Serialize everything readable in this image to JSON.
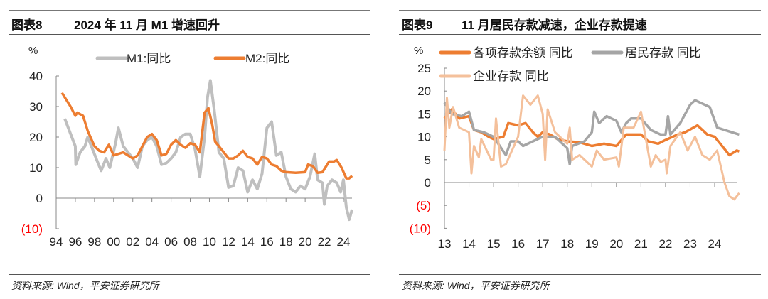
{
  "figures": [
    {
      "number": "图表8",
      "title": "2024 年 11 月 M1 增速回升",
      "source": "资料来源: Wind，平安证券研究所"
    },
    {
      "number": "图表9",
      "title": "11 月居民存款减速，企业存款提速",
      "source": "资料来源: Wind，平安证券研究所"
    }
  ],
  "chart_data": [
    {
      "type": "line",
      "unit_label": "%",
      "xlim": [
        1994,
        2025
      ],
      "ylim": [
        -10,
        40
      ],
      "x_ticks": [
        1994,
        1996,
        1998,
        2000,
        2002,
        2004,
        2006,
        2008,
        2010,
        2012,
        2014,
        2016,
        2018,
        2020,
        2022,
        2024
      ],
      "x_tick_labels": [
        "94",
        "96",
        "98",
        "00",
        "02",
        "04",
        "06",
        "08",
        "10",
        "12",
        "14",
        "16",
        "18",
        "20",
        "22",
        "24"
      ],
      "y_ticks": [
        40,
        30,
        20,
        10,
        0,
        -10
      ],
      "y_tick_labels": [
        "40",
        "30",
        "20",
        "10",
        "0",
        "(10)"
      ],
      "negative_label_color": "#ff0000",
      "grid": false,
      "legend_position": "top",
      "series": [
        {
          "name": "M1:同比",
          "color": "#bfbfbf",
          "x": [
            1994.9,
            1996,
            1996.05,
            1996.5,
            1997,
            1997.3,
            1997.8,
            1998.3,
            1998.7,
            1999.2,
            1999.6,
            2000.2,
            2000.5,
            2001,
            2001.5,
            2002,
            2002.5,
            2003,
            2003.5,
            2004,
            2004.5,
            2005,
            2005.5,
            2006,
            2006.5,
            2007,
            2007.5,
            2008,
            2008.5,
            2009,
            2009.5,
            2009.8,
            2010.1,
            2010.5,
            2011,
            2011.5,
            2012,
            2012.5,
            2013,
            2013.5,
            2014,
            2014.5,
            2015,
            2015.5,
            2016,
            2016.5,
            2017,
            2017.5,
            2018,
            2018.5,
            2019,
            2019.5,
            2020,
            2020.5,
            2021,
            2021.3,
            2021.8,
            2022,
            2022.3,
            2022.8,
            2023.3,
            2023.7,
            2024,
            2024.3,
            2024.6,
            2024.9
          ],
          "y": [
            26,
            17,
            11,
            15,
            17,
            20,
            16,
            12,
            9,
            13,
            10,
            18,
            23,
            17,
            15,
            13,
            10,
            17,
            19,
            20,
            17,
            11,
            11.5,
            13,
            15,
            20,
            21,
            21,
            16,
            7,
            20,
            33,
            38.5,
            29,
            15,
            13,
            3.5,
            4,
            10,
            9,
            2,
            6,
            3,
            8,
            23,
            25,
            14,
            15,
            7,
            3,
            2,
            4,
            3,
            7,
            14.5,
            6,
            5,
            -2,
            4,
            6,
            5,
            2,
            6,
            -3,
            -7,
            -3.7
          ]
        },
        {
          "name": "M2:同比",
          "color": "#ed7d31",
          "x": [
            1994.6,
            1995.5,
            1996,
            1996.2,
            1996.8,
            1997.3,
            1998,
            1998.5,
            1999,
            1999.5,
            2000,
            2001,
            2002,
            2002.5,
            2003.5,
            2004,
            2004.5,
            2005,
            2005.5,
            2006,
            2006.5,
            2007,
            2007.5,
            2008,
            2008.5,
            2009,
            2009.5,
            2009.9,
            2010.3,
            2010.6,
            2011,
            2011.5,
            2012,
            2012.5,
            2013,
            2013.5,
            2014,
            2014.5,
            2015,
            2015.5,
            2016,
            2016.5,
            2017,
            2017.5,
            2018,
            2019,
            2020,
            2020.3,
            2020.8,
            2021.3,
            2021.8,
            2022.5,
            2023,
            2023.3,
            2023.8,
            2024.3,
            2024.6,
            2024.9
          ],
          "y": [
            34.5,
            30,
            27,
            28,
            27,
            22,
            17,
            15.5,
            15,
            17.5,
            14,
            15,
            13,
            14,
            20,
            21,
            19,
            14,
            14.5,
            17.5,
            19,
            17.5,
            16.5,
            18,
            17.5,
            15,
            28,
            29.5,
            24,
            18.5,
            17,
            15,
            13,
            13,
            14,
            15.5,
            13.5,
            13,
            11,
            13.5,
            13,
            11,
            10.5,
            9,
            8.5,
            8.3,
            8.5,
            11,
            10.5,
            8.3,
            8.5,
            12,
            12,
            12.5,
            10,
            6.5,
            6.5,
            7.3
          ]
        }
      ]
    },
    {
      "type": "line",
      "unit_label": "%",
      "xlim": [
        2013,
        2025
      ],
      "ylim": [
        -10,
        25
      ],
      "x_ticks": [
        2013,
        2014,
        2015,
        2016,
        2017,
        2018,
        2019,
        2020,
        2021,
        2022,
        2023,
        2024
      ],
      "x_tick_labels": [
        "13",
        "14",
        "15",
        "16",
        "17",
        "18",
        "19",
        "20",
        "21",
        "22",
        "23",
        "24"
      ],
      "y_ticks": [
        25,
        20,
        15,
        10,
        5,
        0,
        -5,
        -10
      ],
      "y_tick_labels": [
        "25",
        "20",
        "15",
        "10",
        "5",
        "0",
        "(5)",
        "(10)"
      ],
      "negative_label_color": "#ff0000",
      "grid": false,
      "legend_position": "top",
      "series": [
        {
          "name": "各项存款余额 同比",
          "color": "#ed7d31",
          "x": [
            2013,
            2013.3,
            2013.6,
            2014,
            2014.2,
            2014.5,
            2014.8,
            2015,
            2015.4,
            2015.6,
            2016,
            2016.3,
            2016.6,
            2016.8,
            2017,
            2017.3,
            2017.6,
            2018,
            2018.5,
            2019,
            2019.5,
            2020,
            2020.4,
            2021,
            2021.3,
            2021.7,
            2022,
            2022.5,
            2022.8,
            2023.3,
            2023.7,
            2024,
            2024.3,
            2024.6,
            2024.9,
            2025
          ],
          "y": [
            14,
            16,
            14,
            14.5,
            11.5,
            11,
            10,
            9.5,
            10,
            13,
            12.5,
            13,
            11,
            10,
            11,
            10.5,
            9.5,
            9,
            8.8,
            8,
            8.5,
            8,
            10.5,
            10.5,
            9,
            8.5,
            9.3,
            10.5,
            11,
            12.5,
            10.5,
            10,
            8,
            6,
            7,
            6.8
          ]
        },
        {
          "name": "居民存款 同比",
          "color": "#a5a5a5",
          "x": [
            2013,
            2013.3,
            2013.7,
            2014,
            2014.2,
            2014.6,
            2015,
            2015.5,
            2015.7,
            2016,
            2016.2,
            2016.6,
            2017,
            2017.5,
            2018,
            2018.1,
            2018.2,
            2018.7,
            2019,
            2019.1,
            2019.3,
            2019.6,
            2020,
            2020.2,
            2020.4,
            2020.6,
            2021,
            2021.4,
            2021.8,
            2022,
            2022.1,
            2022.2,
            2022.6,
            2023,
            2023.2,
            2023.8,
            2024.1,
            2024.4,
            2025
          ],
          "y": [
            17.5,
            15,
            14.5,
            15.5,
            11.5,
            11,
            10,
            6,
            9,
            9,
            8,
            9,
            10,
            10,
            7.5,
            4,
            8,
            9,
            11,
            15.5,
            13,
            14.5,
            13.5,
            11,
            13,
            14,
            14,
            11.5,
            10.5,
            10.5,
            14.5,
            10.5,
            13,
            17,
            18,
            16.5,
            12,
            11.5,
            10.5
          ]
        },
        {
          "name": "企业存款 同比",
          "color": "#f4c09b",
          "x": [
            2013,
            2013.1,
            2013.2,
            2013.35,
            2013.6,
            2014,
            2014.1,
            2014.2,
            2014.4,
            2014.5,
            2014.9,
            2015,
            2015.1,
            2015.3,
            2015.5,
            2016,
            2016.2,
            2016.5,
            2016.8,
            2017,
            2017.1,
            2017.2,
            2017.5,
            2017.7,
            2018,
            2018.1,
            2018.2,
            2018.5,
            2019,
            2019.2,
            2019.5,
            2020,
            2020.1,
            2020.3,
            2020.7,
            2021,
            2021.4,
            2021.6,
            2021.8,
            2022,
            2022.05,
            2022.2,
            2022.6,
            2022.9,
            2023.2,
            2023.5,
            2023.8,
            2024.1,
            2024.4,
            2024.6,
            2024.8,
            2025
          ],
          "y": [
            7,
            18.5,
            12,
            16.5,
            12,
            11,
            2,
            8,
            5.5,
            9.5,
            5,
            5,
            14,
            3.5,
            4,
            10,
            19,
            17,
            19,
            15,
            5,
            16,
            11,
            10,
            8.5,
            12,
            5,
            6,
            3.5,
            7,
            5,
            5.5,
            3.5,
            12,
            12,
            15.5,
            3.5,
            6,
            4.5,
            5,
            2,
            8,
            11,
            7,
            10,
            6,
            5,
            7,
            0,
            -3,
            -3.7,
            -2.3
          ]
        }
      ]
    }
  ]
}
